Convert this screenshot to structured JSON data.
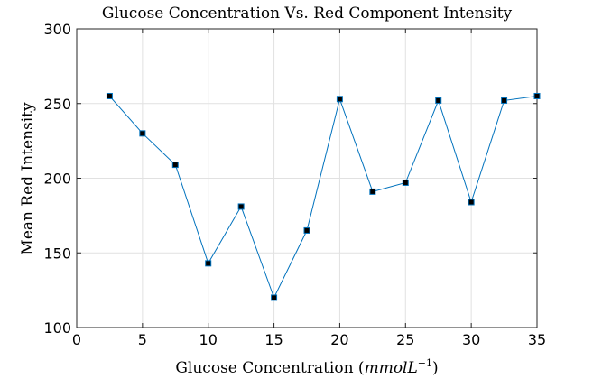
{
  "chart_data": {
    "type": "line",
    "title": "Glucose Concentration Vs. Red Component Intensity",
    "xlabel": "Glucose Concentration",
    "xlabel_unit_base": "mmolL",
    "xlabel_unit_exponent": "−1",
    "ylabel": "Mean Red Intensity",
    "xlim": [
      0,
      35
    ],
    "ylim": [
      100,
      300
    ],
    "xticks": [
      "0",
      "5",
      "10",
      "15",
      "20",
      "25",
      "30",
      "35"
    ],
    "yticks": [
      "100",
      "150",
      "200",
      "250",
      "300"
    ],
    "grid": true,
    "line_color": "#0072bd",
    "marker_color": "#000000",
    "x": [
      2.5,
      5,
      7.5,
      10,
      12.5,
      15,
      17.5,
      20,
      22.5,
      25,
      27.5,
      30,
      32.5,
      35
    ],
    "values": [
      255,
      230,
      209,
      143,
      181,
      120,
      165,
      253,
      191,
      197,
      252,
      184,
      252,
      255
    ]
  }
}
